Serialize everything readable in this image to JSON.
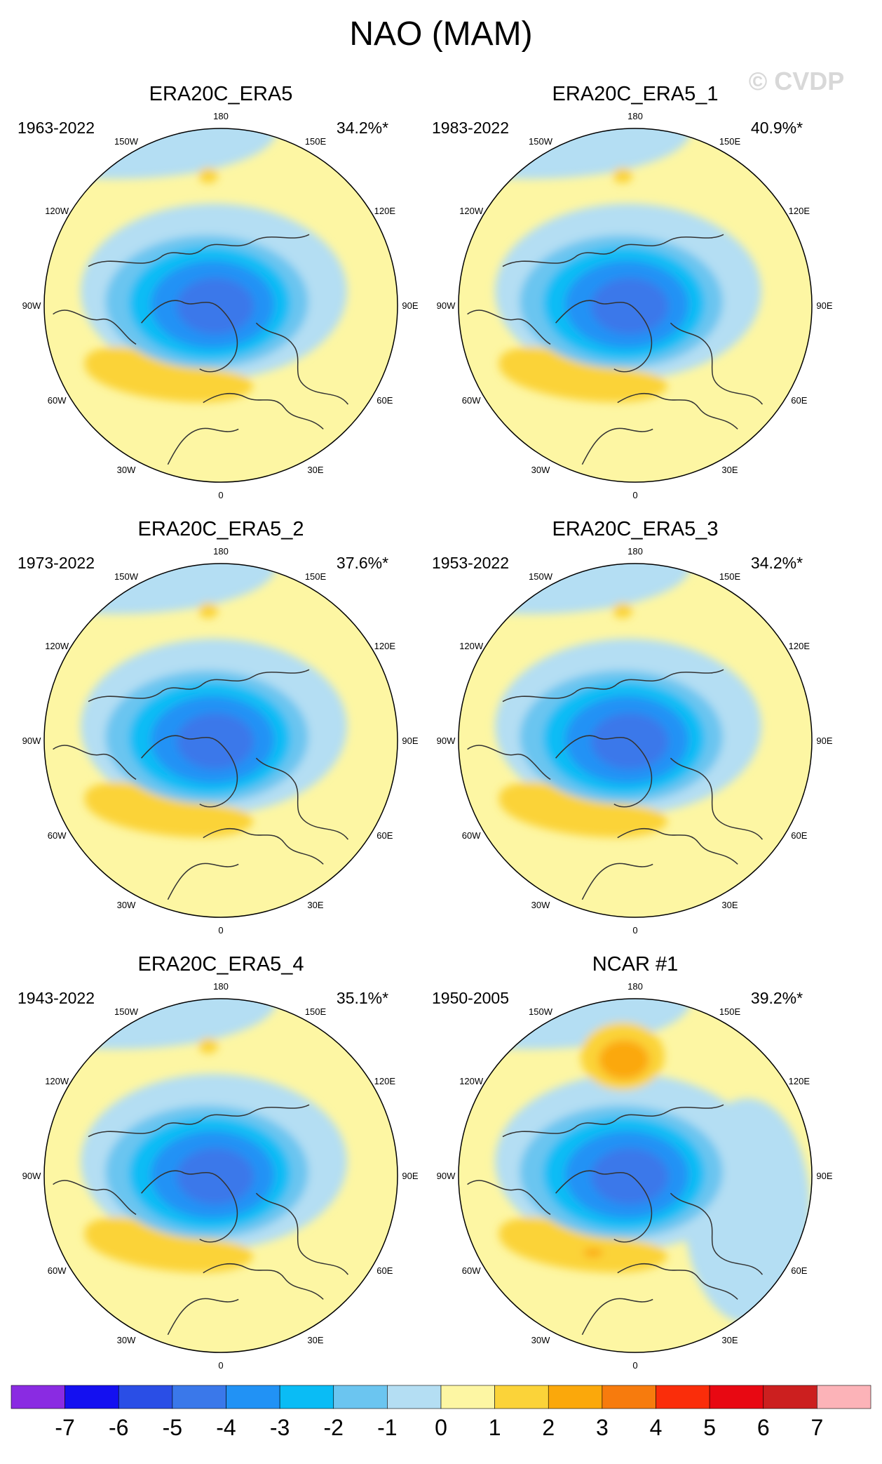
{
  "figure": {
    "title": "NAO (MAM)",
    "watermark": "© CVDP"
  },
  "chart_data": {
    "type": "heatmap",
    "projection": "north-polar-stereographic",
    "variable": "NAO pattern (MAM)",
    "panels": [
      {
        "name": "ERA20C_ERA5",
        "years": "1963-2022",
        "pct_variance": "34.2%*",
        "min_level": -4,
        "max_level": 2
      },
      {
        "name": "ERA20C_ERA5_1",
        "years": "1983-2022",
        "pct_variance": "40.9%*",
        "min_level": -4,
        "max_level": 2
      },
      {
        "name": "ERA20C_ERA5_2",
        "years": "1973-2022",
        "pct_variance": "37.6%*",
        "min_level": -4,
        "max_level": 2
      },
      {
        "name": "ERA20C_ERA5_3",
        "years": "1953-2022",
        "pct_variance": "34.2%*",
        "min_level": -4,
        "max_level": 2
      },
      {
        "name": "ERA20C_ERA5_4",
        "years": "1943-2022",
        "pct_variance": "35.1%*",
        "min_level": -4,
        "max_level": 2
      },
      {
        "name": "NCAR #1",
        "years": "1950-2005",
        "pct_variance": "39.2%*",
        "min_level": -4,
        "max_level": 3
      }
    ],
    "lon_labels": [
      "180",
      "150E",
      "120E",
      "90E",
      "60E",
      "30E",
      "0",
      "30W",
      "60W",
      "90W",
      "120W",
      "150W"
    ],
    "colorbar": {
      "levels": [
        "-7",
        "-6",
        "-5",
        "-4",
        "-3",
        "-2",
        "-1",
        "0",
        "1",
        "2",
        "3",
        "4",
        "5",
        "6",
        "7"
      ],
      "colors": [
        "#8a2be2",
        "#1410f0",
        "#2a4ee6",
        "#3a78ea",
        "#2192f5",
        "#0abcf5",
        "#6bc5f0",
        "#b4def3",
        "#fdf6a3",
        "#fbd339",
        "#fba80b",
        "#f77b0d",
        "#fa2d0a",
        "#e80812",
        "#cc1f1f",
        "#fcb3b8"
      ]
    }
  }
}
